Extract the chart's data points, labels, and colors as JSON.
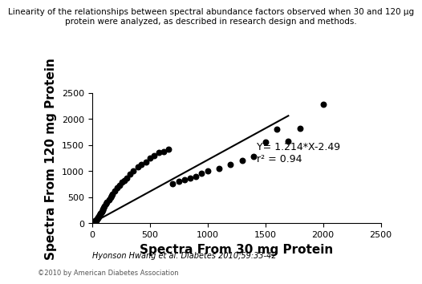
{
  "title_line1": "Linearity of the relationships between spectral abundance factors observed when 30 and 120 μg",
  "title_line2": "protein were analyzed, as described in research design and methods.",
  "xlabel": "Spectra From 30 mg Protein",
  "ylabel": "Spectra From 120 mg Protein",
  "xlim": [
    0,
    2500
  ],
  "ylim": [
    0,
    2500
  ],
  "xticks": [
    0,
    500,
    1000,
    1500,
    2000,
    2500
  ],
  "yticks": [
    0,
    500,
    1000,
    1500,
    2000,
    2500
  ],
  "equation": "Y= 1.214*X-2.49",
  "r2": "r² = 0.94",
  "slope": 1.214,
  "intercept": -2.49,
  "scatter_x": [
    2,
    3,
    4,
    5,
    5,
    6,
    7,
    8,
    9,
    10,
    12,
    12,
    14,
    15,
    16,
    18,
    20,
    22,
    25,
    28,
    30,
    32,
    35,
    38,
    40,
    45,
    50,
    55,
    58,
    60,
    65,
    70,
    75,
    80,
    85,
    90,
    95,
    100,
    110,
    120,
    130,
    150,
    160,
    170,
    180,
    200,
    220,
    240,
    260,
    280,
    300,
    330,
    360,
    400,
    430,
    470,
    500,
    540,
    580,
    620,
    660,
    700,
    750,
    800,
    850,
    900,
    950,
    1000,
    1100,
    1200,
    1300,
    1400,
    1500,
    1600,
    1700,
    1800,
    2000
  ],
  "scatter_y": [
    0,
    0,
    2,
    0,
    3,
    5,
    0,
    8,
    5,
    10,
    8,
    15,
    18,
    20,
    15,
    22,
    25,
    30,
    35,
    40,
    45,
    50,
    55,
    65,
    70,
    80,
    100,
    110,
    120,
    130,
    150,
    170,
    180,
    200,
    220,
    250,
    270,
    290,
    320,
    370,
    400,
    450,
    500,
    520,
    560,
    620,
    680,
    730,
    780,
    820,
    870,
    940,
    1000,
    1080,
    1120,
    1180,
    1250,
    1300,
    1350,
    1380,
    1420,
    760,
    800,
    830,
    860,
    900,
    950,
    1000,
    1050,
    1120,
    1200,
    1280,
    1560,
    1800,
    1570,
    1820,
    2280
  ],
  "dot_color": "#000000",
  "dot_size": 22,
  "line_color": "#000000",
  "line_width": 1.5,
  "citation": "Hyonson Hwang et al. Diabetes 2010;59:33-42",
  "copyright": "©2010 by American Diabetes Association",
  "title_fontsize": 7.5,
  "axis_label_fontsize": 11,
  "tick_fontsize": 8,
  "annot_fontsize": 9,
  "citation_fontsize": 7,
  "background_color": "#ffffff"
}
